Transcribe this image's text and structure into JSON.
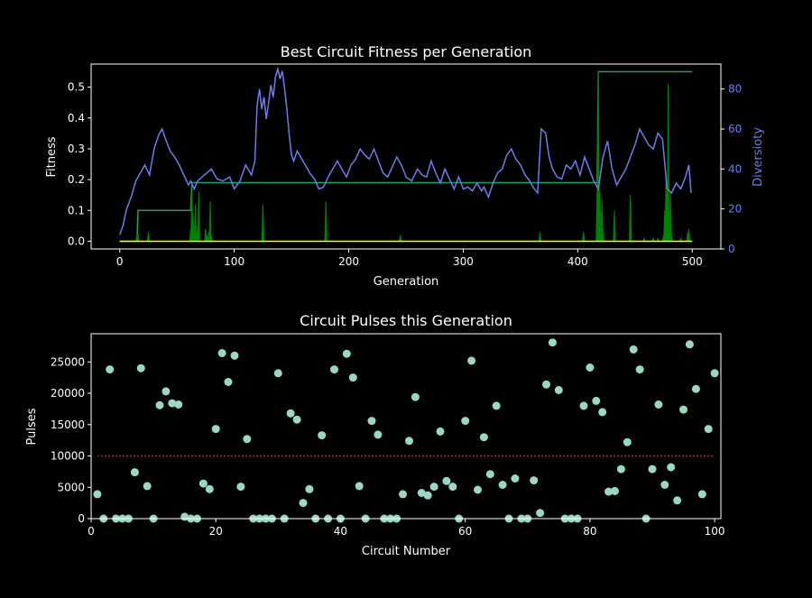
{
  "chart_data": [
    {
      "type": "line",
      "title": "Best Circuit Fitness per Generation",
      "xlabel": "Generation",
      "ylabel": "Fitness",
      "y2label": "Diversioty",
      "xlim": [
        -25,
        525
      ],
      "ylim": [
        -0.025,
        0.575
      ],
      "y2lim": [
        0,
        92.5
      ],
      "xticks": [
        0,
        100,
        200,
        300,
        400,
        500
      ],
      "yticks": [
        0.0,
        0.1,
        0.2,
        0.3,
        0.4,
        0.5
      ],
      "y2ticks": [
        0,
        20,
        40,
        60,
        80
      ],
      "colors": {
        "best": "#1aa35a",
        "current": "#008000",
        "baseline": "#ffff00",
        "diversity": "#6d7cec"
      },
      "series": [
        {
          "axis": "left",
          "style": "step",
          "x": [
            0,
            15,
            16,
            62,
            63,
            417,
            418,
            500
          ],
          "y": [
            0.0,
            0.0,
            0.1,
            0.1,
            0.19,
            0.19,
            0.55,
            0.55
          ]
        },
        {
          "axis": "left",
          "style": "spikes",
          "x": [
            15,
            16,
            25,
            62,
            63,
            64,
            65,
            66,
            67,
            68,
            69,
            75,
            76,
            77,
            78,
            79,
            80,
            125,
            180,
            245,
            367,
            405,
            417,
            418,
            419,
            420,
            421,
            422,
            432,
            446,
            458,
            466,
            470,
            475,
            476,
            477,
            478,
            479,
            480,
            481,
            482,
            490,
            496,
            497
          ],
          "y": [
            0.02,
            0.03,
            0.03,
            0.04,
            0.16,
            0.09,
            0.03,
            0.12,
            0.05,
            0.02,
            0.16,
            0.04,
            0.02,
            0.01,
            0.03,
            0.13,
            0.02,
            0.12,
            0.13,
            0.02,
            0.03,
            0.03,
            0.17,
            0.55,
            0.16,
            0.09,
            0.14,
            0.04,
            0.1,
            0.15,
            0.01,
            0.01,
            0.01,
            0.02,
            0.1,
            0.2,
            0.16,
            0.51,
            0.09,
            0.16,
            0.02,
            0.01,
            0.03,
            0.04
          ]
        },
        {
          "axis": "left",
          "style": "line",
          "x": [
            0,
            500
          ],
          "y": [
            0.0,
            0.0
          ]
        },
        {
          "axis": "right",
          "style": "line",
          "x": [
            0,
            3,
            6,
            10,
            14,
            18,
            22,
            26,
            30,
            34,
            37,
            40,
            44,
            48,
            52,
            56,
            60,
            62,
            65,
            68,
            72,
            76,
            80,
            85,
            90,
            96,
            100,
            105,
            110,
            115,
            118,
            120,
            122,
            124,
            126,
            128,
            130,
            132,
            134,
            136,
            138,
            140,
            142,
            144,
            146,
            148,
            150,
            152,
            155,
            158,
            162,
            166,
            170,
            174,
            178,
            182,
            186,
            190,
            194,
            198,
            202,
            206,
            210,
            214,
            218,
            222,
            226,
            230,
            234,
            238,
            242,
            246,
            250,
            255,
            260,
            264,
            268,
            272,
            276,
            280,
            284,
            288,
            292,
            296,
            300,
            304,
            308,
            312,
            316,
            318,
            322,
            326,
            330,
            334,
            338,
            342,
            346,
            350,
            354,
            358,
            362,
            365,
            368,
            372,
            375,
            378,
            382,
            386,
            390,
            394,
            398,
            402,
            406,
            410,
            414,
            418,
            422,
            426,
            430,
            434,
            438,
            442,
            446,
            450,
            454,
            458,
            462,
            466,
            470,
            474,
            478,
            482,
            486,
            490,
            494,
            497,
            499
          ],
          "y": [
            7,
            12,
            20,
            26,
            34,
            38,
            42,
            37,
            50,
            57,
            60,
            55,
            49,
            46,
            42,
            37,
            32,
            34,
            30,
            34,
            36,
            38,
            40,
            35,
            34,
            36,
            30,
            34,
            42,
            37,
            44,
            72,
            80,
            70,
            76,
            65,
            73,
            82,
            76,
            86,
            90,
            85,
            89,
            80,
            70,
            57,
            47,
            44,
            49,
            46,
            42,
            38,
            35,
            30,
            31,
            36,
            40,
            44,
            40,
            36,
            42,
            45,
            50,
            47,
            45,
            50,
            44,
            38,
            36,
            41,
            46,
            42,
            36,
            34,
            40,
            37,
            36,
            44,
            38,
            33,
            40,
            35,
            30,
            36,
            30,
            31,
            29,
            33,
            29,
            31,
            26,
            33,
            38,
            40,
            47,
            50,
            45,
            42,
            37,
            34,
            30,
            28,
            60,
            58,
            46,
            40,
            36,
            35,
            42,
            40,
            44,
            37,
            46,
            40,
            34,
            30,
            46,
            54,
            40,
            32,
            36,
            40,
            46,
            52,
            60,
            56,
            52,
            50,
            58,
            55,
            30,
            28,
            33,
            30,
            36,
            42,
            28
          ]
        }
      ]
    },
    {
      "type": "scatter",
      "title": "Circuit Pulses this Generation",
      "xlabel": "Circuit Number",
      "ylabel": "Pulses",
      "xlim": [
        0,
        101
      ],
      "ylim": [
        0,
        29500
      ],
      "xticks": [
        0,
        20,
        40,
        60,
        80,
        100
      ],
      "yticks": [
        0,
        5000,
        10000,
        15000,
        20000,
        25000
      ],
      "threshold": 10000,
      "colors": {
        "points": "#99d8c9",
        "threshold": "#ff0000"
      },
      "x": [
        1,
        2,
        3,
        4,
        5,
        6,
        7,
        8,
        9,
        10,
        11,
        12,
        13,
        14,
        15,
        16,
        17,
        18,
        19,
        20,
        21,
        22,
        23,
        24,
        25,
        26,
        27,
        28,
        29,
        30,
        31,
        32,
        33,
        34,
        35,
        36,
        37,
        38,
        39,
        40,
        41,
        42,
        43,
        44,
        45,
        46,
        47,
        48,
        49,
        50,
        51,
        52,
        53,
        54,
        55,
        56,
        57,
        58,
        59,
        60,
        61,
        62,
        63,
        64,
        65,
        66,
        67,
        68,
        69,
        70,
        71,
        72,
        73,
        74,
        75,
        76,
        77,
        78,
        79,
        80,
        81,
        82,
        83,
        84,
        85,
        86,
        87,
        88,
        89,
        90,
        91,
        92,
        93,
        94,
        95,
        96,
        97,
        98,
        99,
        100
      ],
      "y": [
        3900,
        0,
        23800,
        0,
        0,
        0,
        7400,
        24000,
        5200,
        0,
        18100,
        20300,
        18400,
        18200,
        300,
        0,
        0,
        5600,
        4700,
        14300,
        26400,
        21800,
        26000,
        5100,
        12700,
        0,
        0,
        0,
        0,
        23200,
        0,
        16800,
        15800,
        2500,
        4700,
        0,
        13300,
        0,
        23800,
        0,
        26300,
        22500,
        5200,
        0,
        15600,
        13400,
        0,
        0,
        0,
        3900,
        12400,
        19400,
        4100,
        3700,
        5100,
        13900,
        6000,
        5100,
        0,
        15600,
        25200,
        4600,
        13000,
        7100,
        18000,
        5400,
        0,
        6400,
        0,
        0,
        6100,
        900,
        21400,
        28100,
        20500,
        0,
        0,
        0,
        18000,
        24100,
        18800,
        17000,
        4300,
        4400,
        7900,
        12200,
        27000,
        23800,
        0,
        7900,
        18200,
        5400,
        8200,
        2900,
        17400,
        27800,
        20700,
        3900,
        14300,
        23200
      ]
    }
  ]
}
